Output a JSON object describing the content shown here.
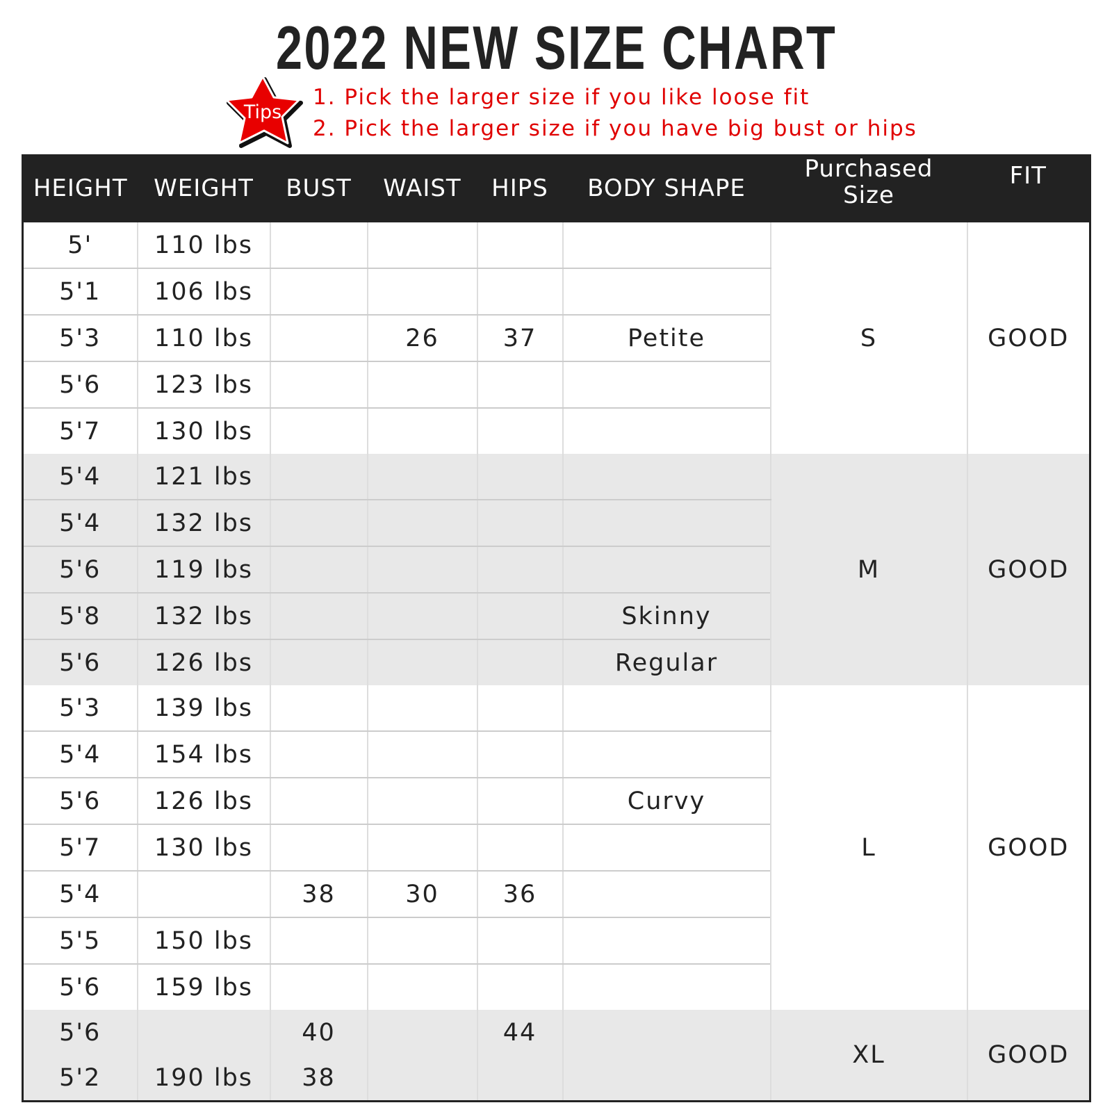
{
  "title": "2022 NEW SIZE CHART",
  "tips": {
    "badge": "Tips",
    "lines": [
      "1. Pick the larger size if you like loose fit",
      "2. Pick the larger size if you have big bust or hips"
    ],
    "color": "#e00000"
  },
  "headers": [
    "HEIGHT",
    "WEIGHT",
    "BUST",
    "WAIST",
    "HIPS",
    "BODY SHAPE",
    "Purchased Size",
    "FIT"
  ],
  "groups": [
    {
      "size": "S",
      "fit": "GOOD",
      "rows": [
        [
          "5'",
          "110 lbs",
          "",
          "",
          "",
          ""
        ],
        [
          "5'1",
          "106 lbs",
          "",
          "",
          "",
          ""
        ],
        [
          "5'3",
          "110 lbs",
          "",
          "26",
          "37",
          "Petite"
        ],
        [
          "5'6",
          "123 lbs",
          "",
          "",
          "",
          ""
        ],
        [
          "5'7",
          "130 lbs",
          "",
          "",
          "",
          ""
        ]
      ]
    },
    {
      "size": "M",
      "fit": "GOOD",
      "rows": [
        [
          "5'4",
          "121 lbs",
          "",
          "",
          "",
          ""
        ],
        [
          "5'4",
          "132 lbs",
          "",
          "",
          "",
          ""
        ],
        [
          "5'6",
          "119 lbs",
          "",
          "",
          "",
          ""
        ],
        [
          "5'8",
          "132 lbs",
          "",
          "",
          "",
          "Skinny"
        ],
        [
          "5'6",
          "126 lbs",
          "",
          "",
          "",
          "Regular"
        ]
      ]
    },
    {
      "size": "L",
      "fit": "GOOD",
      "rows": [
        [
          "5'3",
          "139 lbs",
          "",
          "",
          "",
          ""
        ],
        [
          "5'4",
          "154 lbs",
          "",
          "",
          "",
          ""
        ],
        [
          "5'6",
          "126 lbs",
          "",
          "",
          "",
          "Curvy"
        ],
        [
          "5'7",
          "130 lbs",
          "",
          "",
          "",
          ""
        ],
        [
          "5'4",
          "",
          "38",
          "30",
          "36",
          ""
        ],
        [
          "5'5",
          "150 lbs",
          "",
          "",
          "",
          ""
        ],
        [
          "5'6",
          "159 lbs",
          "",
          "",
          "",
          ""
        ]
      ]
    },
    {
      "size": "XL",
      "fit": "GOOD",
      "rows": [
        [
          "5'6",
          "",
          "40",
          "",
          "44",
          ""
        ],
        [
          "5'2",
          "190 lbs",
          "38",
          "",
          "",
          ""
        ]
      ]
    }
  ]
}
